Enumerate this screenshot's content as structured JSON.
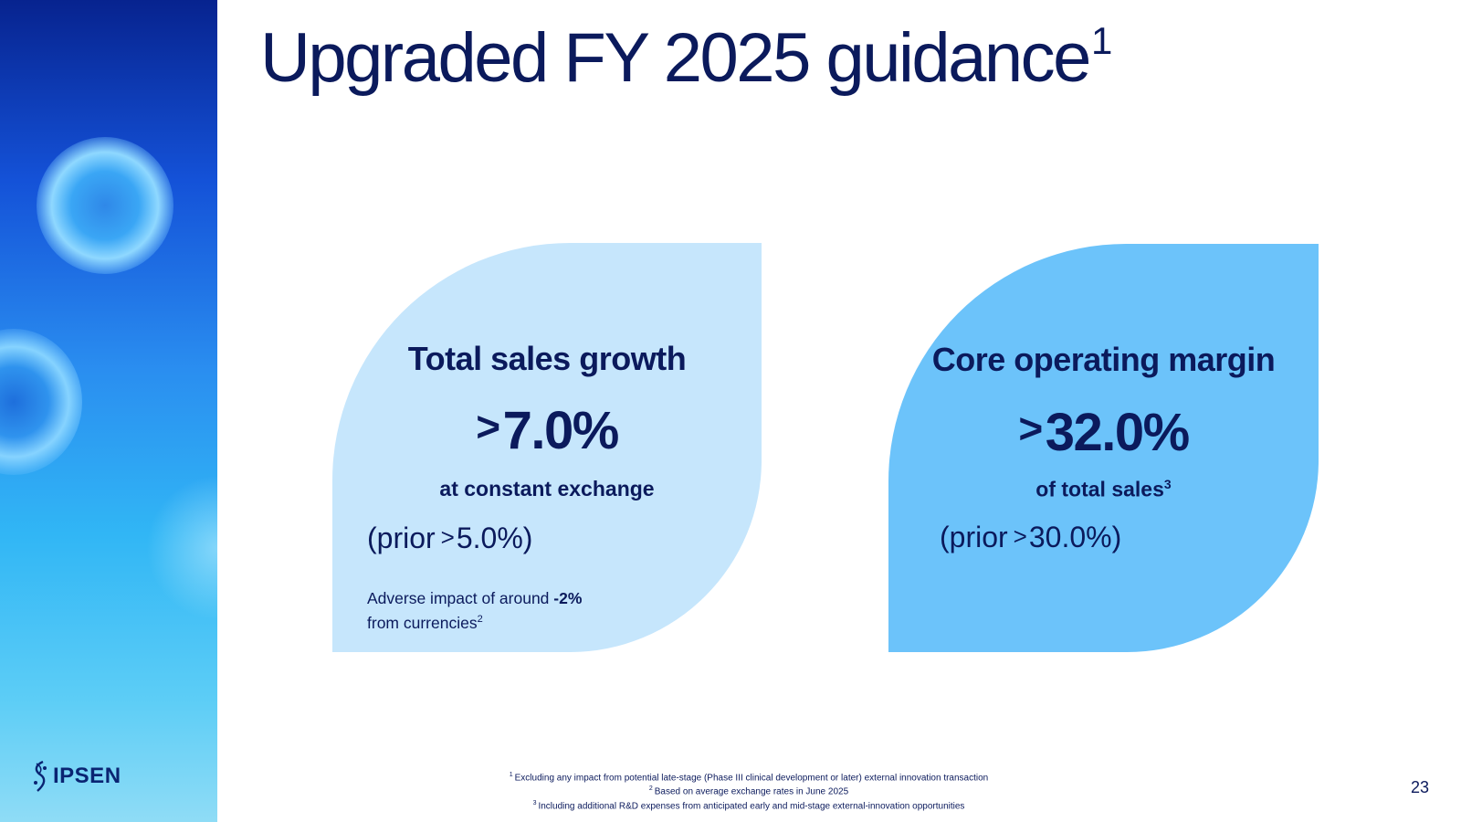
{
  "slide": {
    "title": "Upgraded FY 2025 guidance",
    "title_sup": "1",
    "page_number": "23"
  },
  "logo": {
    "text": "IPSEN",
    "icon": "ipsen-logo-icon"
  },
  "cards": {
    "sales": {
      "title": "Total sales growth",
      "symbol": ">",
      "value": "7.0%",
      "subtitle": "at constant exchange",
      "prior_label": "(prior",
      "prior_symbol": ">",
      "prior_value": "5.0%)",
      "note_line1_start": "Adverse impact of around ",
      "note_bold": "-2%",
      "note_line2": "from currencies",
      "note_sup": "2"
    },
    "margin": {
      "title": "Core operating margin",
      "symbol": ">",
      "value": "32.0%",
      "subtitle": "of total sales",
      "subtitle_sup": "3",
      "prior_label": "(prior",
      "prior_symbol": ">",
      "prior_value": "30.0%)"
    }
  },
  "footnotes": [
    {
      "num": "1",
      "text": "Excluding any impact from potential late-stage (Phase III clinical development or later) external innovation transaction"
    },
    {
      "num": "2",
      "text": "Based on average exchange rates in June 2025"
    },
    {
      "num": "3",
      "text": "Including additional R&D expenses from anticipated early and mid-stage external-innovation opportunities"
    }
  ],
  "colors": {
    "navy": "#0b1a5c",
    "card_light": "#c6e6fc",
    "card_dark": "#6cc3fa"
  }
}
